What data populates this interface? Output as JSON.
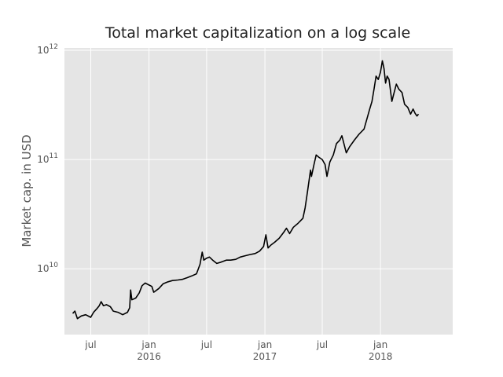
{
  "chart_data": {
    "type": "line",
    "title": "Total market capitalization on a log scale",
    "xlabel": "",
    "ylabel": "Market cap. in USD",
    "y_scale": "log",
    "ylim": [
      2500000000,
      1050000000000
    ],
    "xlim": [
      "2015-04-09",
      "2018-08-17"
    ],
    "grid": true,
    "background": "#e5e5e5",
    "line_color": "#000000",
    "y_ticks": [
      {
        "value": 10000000000,
        "base": "10",
        "exp": "10"
      },
      {
        "value": 100000000000,
        "base": "10",
        "exp": "11"
      },
      {
        "value": 1000000000000,
        "base": "10",
        "exp": "12"
      }
    ],
    "x_ticks": [
      {
        "date": "2015-07-01",
        "label": "jul",
        "year": ""
      },
      {
        "date": "2016-01-01",
        "label": "jan",
        "year": "2016"
      },
      {
        "date": "2016-07-01",
        "label": "jul",
        "year": ""
      },
      {
        "date": "2017-01-01",
        "label": "jan",
        "year": "2017"
      },
      {
        "date": "2017-07-01",
        "label": "jul",
        "year": ""
      },
      {
        "date": "2018-01-01",
        "label": "jan",
        "year": "2018"
      }
    ],
    "series": [
      {
        "points": [
          [
            "2015-05-05",
            3900000000.0
          ],
          [
            "2015-05-12",
            4100000000.0
          ],
          [
            "2015-05-20",
            3500000000.0
          ],
          [
            "2015-06-01",
            3700000000.0
          ],
          [
            "2015-06-15",
            3800000000.0
          ],
          [
            "2015-07-01",
            3600000000.0
          ],
          [
            "2015-07-10",
            4000000000.0
          ],
          [
            "2015-07-20",
            4300000000.0
          ],
          [
            "2015-07-28",
            4600000000.0
          ],
          [
            "2015-08-03",
            5000000000.0
          ],
          [
            "2015-08-10",
            4600000000.0
          ],
          [
            "2015-08-20",
            4700000000.0
          ],
          [
            "2015-09-01",
            4500000000.0
          ],
          [
            "2015-09-10",
            4100000000.0
          ],
          [
            "2015-09-25",
            4000000000.0
          ],
          [
            "2015-10-10",
            3800000000.0
          ],
          [
            "2015-10-25",
            4000000000.0
          ],
          [
            "2015-11-01",
            4400000000.0
          ],
          [
            "2015-11-04",
            6400000000.0
          ],
          [
            "2015-11-08",
            5200000000.0
          ],
          [
            "2015-11-20",
            5400000000.0
          ],
          [
            "2015-12-01",
            6000000000.0
          ],
          [
            "2015-12-10",
            7000000000.0
          ],
          [
            "2015-12-20",
            7400000000.0
          ],
          [
            "2016-01-01",
            7100000000.0
          ],
          [
            "2016-01-10",
            6900000000.0
          ],
          [
            "2016-01-16",
            6100000000.0
          ],
          [
            "2016-02-01",
            6600000000.0
          ],
          [
            "2016-02-15",
            7300000000.0
          ],
          [
            "2016-03-01",
            7600000000.0
          ],
          [
            "2016-03-15",
            7800000000.0
          ],
          [
            "2016-04-01",
            7900000000.0
          ],
          [
            "2016-04-15",
            8000000000.0
          ],
          [
            "2016-05-01",
            8300000000.0
          ],
          [
            "2016-05-15",
            8600000000.0
          ],
          [
            "2016-05-30",
            9000000000.0
          ],
          [
            "2016-06-10",
            11000000000.0
          ],
          [
            "2016-06-17",
            14200000000.0
          ],
          [
            "2016-06-22",
            12000000000.0
          ],
          [
            "2016-07-01",
            12500000000.0
          ],
          [
            "2016-07-10",
            12800000000.0
          ],
          [
            "2016-07-20",
            12000000000.0
          ],
          [
            "2016-08-02",
            11200000000.0
          ],
          [
            "2016-08-15",
            11500000000.0
          ],
          [
            "2016-09-01",
            12000000000.0
          ],
          [
            "2016-09-15",
            12000000000.0
          ],
          [
            "2016-10-01",
            12200000000.0
          ],
          [
            "2016-10-15",
            12800000000.0
          ],
          [
            "2016-11-01",
            13200000000.0
          ],
          [
            "2016-11-15",
            13500000000.0
          ],
          [
            "2016-12-01",
            13800000000.0
          ],
          [
            "2016-12-15",
            14500000000.0
          ],
          [
            "2016-12-28",
            16000000000.0
          ],
          [
            "2017-01-04",
            20500000000.0
          ],
          [
            "2017-01-11",
            15500000000.0
          ],
          [
            "2017-01-20",
            16500000000.0
          ],
          [
            "2017-02-01",
            17500000000.0
          ],
          [
            "2017-02-15",
            19000000000.0
          ],
          [
            "2017-03-01",
            21500000000.0
          ],
          [
            "2017-03-10",
            23500000000.0
          ],
          [
            "2017-03-20",
            21000000000.0
          ],
          [
            "2017-04-01",
            24000000000.0
          ],
          [
            "2017-04-15",
            26000000000.0
          ],
          [
            "2017-05-01",
            29000000000.0
          ],
          [
            "2017-05-08",
            36000000000.0
          ],
          [
            "2017-05-15",
            50000000000.0
          ],
          [
            "2017-05-25",
            80000000000.0
          ],
          [
            "2017-05-28",
            70000000000.0
          ],
          [
            "2017-06-05",
            90000000000.0
          ],
          [
            "2017-06-12",
            110000000000.0
          ],
          [
            "2017-06-20",
            105000000000.0
          ],
          [
            "2017-07-01",
            100000000000.0
          ],
          [
            "2017-07-10",
            90000000000.0
          ],
          [
            "2017-07-16",
            70000000000.0
          ],
          [
            "2017-07-25",
            95000000000.0
          ],
          [
            "2017-08-05",
            110000000000.0
          ],
          [
            "2017-08-15",
            140000000000.0
          ],
          [
            "2017-08-25",
            150000000000.0
          ],
          [
            "2017-09-01",
            165000000000.0
          ],
          [
            "2017-09-15",
            115000000000.0
          ],
          [
            "2017-09-25",
            130000000000.0
          ],
          [
            "2017-10-10",
            150000000000.0
          ],
          [
            "2017-10-25",
            170000000000.0
          ],
          [
            "2017-11-10",
            190000000000.0
          ],
          [
            "2017-11-20",
            240000000000.0
          ],
          [
            "2017-11-28",
            290000000000.0
          ],
          [
            "2017-12-05",
            340000000000.0
          ],
          [
            "2017-12-12",
            450000000000.0
          ],
          [
            "2017-12-18",
            580000000000.0
          ],
          [
            "2017-12-25",
            540000000000.0
          ],
          [
            "2018-01-01",
            630000000000.0
          ],
          [
            "2018-01-07",
            800000000000.0
          ],
          [
            "2018-01-12",
            680000000000.0
          ],
          [
            "2018-01-17",
            500000000000.0
          ],
          [
            "2018-01-22",
            580000000000.0
          ],
          [
            "2018-01-28",
            540000000000.0
          ],
          [
            "2018-02-06",
            340000000000.0
          ],
          [
            "2018-02-12",
            400000000000.0
          ],
          [
            "2018-02-20",
            490000000000.0
          ],
          [
            "2018-02-28",
            440000000000.0
          ],
          [
            "2018-03-10",
            410000000000.0
          ],
          [
            "2018-03-18",
            320000000000.0
          ],
          [
            "2018-03-28",
            300000000000.0
          ],
          [
            "2018-04-06",
            260000000000.0
          ],
          [
            "2018-04-14",
            290000000000.0
          ],
          [
            "2018-04-20",
            265000000000.0
          ],
          [
            "2018-04-26",
            250000000000.0
          ],
          [
            "2018-05-01",
            260000000000.0
          ]
        ]
      }
    ]
  }
}
